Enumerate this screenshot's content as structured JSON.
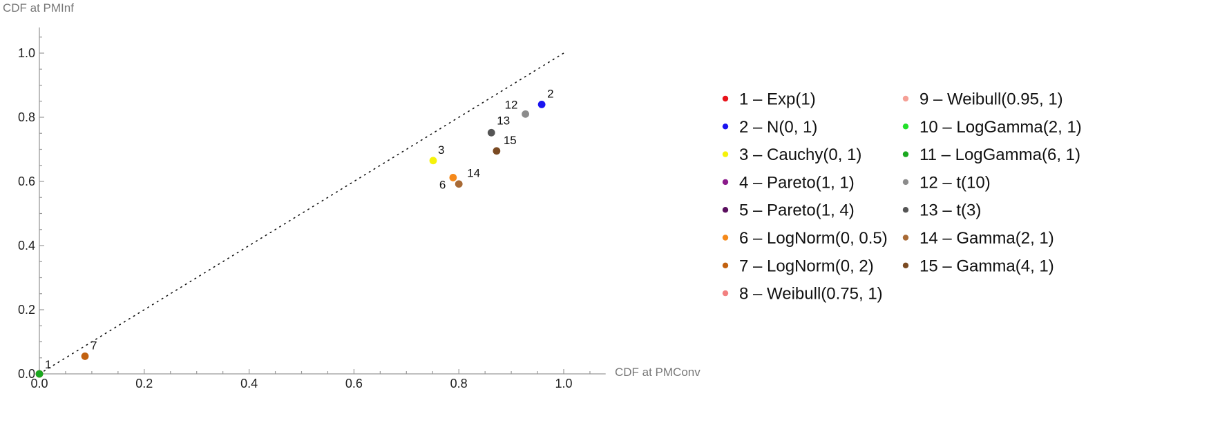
{
  "chart_data": {
    "type": "scatter",
    "xlabel": "CDF at PMConv",
    "ylabel": "CDF at PMInf",
    "xlim": [
      0,
      1.08
    ],
    "ylim": [
      0,
      1.08
    ],
    "x_ticks": [
      0.0,
      0.2,
      0.4,
      0.6,
      0.8,
      1.0
    ],
    "y_ticks": [
      0.0,
      0.2,
      0.4,
      0.6,
      0.8,
      1.0
    ],
    "x_tick_labels": [
      "0.0",
      "0.2",
      "0.4",
      "0.6",
      "0.8",
      "1.0"
    ],
    "y_tick_labels": [
      "0.0",
      "0.2",
      "0.4",
      "0.6",
      "0.8",
      "1.0"
    ],
    "reference_line": {
      "style": "dotted",
      "from": [
        0,
        0
      ],
      "to": [
        1,
        1
      ]
    },
    "grid": false,
    "legend_position": "right",
    "series": [
      {
        "label": "1",
        "name": "1 – Exp(1)",
        "color": "#e8131a",
        "x": 0.0,
        "y": 0.0
      },
      {
        "label": "2",
        "name": "2 – N(0, 1)",
        "color": "#1a14f0",
        "x": 0.958,
        "y": 0.84
      },
      {
        "label": "3",
        "name": "3 – Cauchy(0, 1)",
        "color": "#f5f20a",
        "x": 0.751,
        "y": 0.665
      },
      {
        "label": "4",
        "name": "4 – Pareto(1, 1)",
        "color": "#8b1a8b",
        "x": null,
        "y": null
      },
      {
        "label": "5",
        "name": "5 – Pareto(1, 4)",
        "color": "#5a0f5e",
        "x": null,
        "y": null
      },
      {
        "label": "6",
        "name": "6 – LogNorm(0, 0.5)",
        "color": "#f5891a",
        "x": 0.789,
        "y": 0.612
      },
      {
        "label": "7",
        "name": "7 – LogNorm(0, 2)",
        "color": "#c2610f",
        "x": 0.087,
        "y": 0.055
      },
      {
        "label": "8",
        "name": "8 – Weibull(0.75, 1)",
        "color": "#f28080",
        "x": null,
        "y": null
      },
      {
        "label": "9",
        "name": "9 – Weibull(0.95, 1)",
        "color": "#f5a096",
        "x": null,
        "y": null
      },
      {
        "label": "10",
        "name": "10 – LogGamma(2, 1)",
        "color": "#22e02a",
        "x": null,
        "y": null
      },
      {
        "label": "11",
        "name": "11 – LogGamma(6, 1)",
        "color": "#1aa81f",
        "x": 0.0,
        "y": 0.0
      },
      {
        "label": "12",
        "name": "12 – t(10)",
        "color": "#8c8c8c",
        "x": 0.927,
        "y": 0.81
      },
      {
        "label": "13",
        "name": "13 – t(3)",
        "color": "#555555",
        "x": 0.862,
        "y": 0.752
      },
      {
        "label": "14",
        "name": "14 – Gamma(2, 1)",
        "color": "#a86a35",
        "x": 0.8,
        "y": 0.592
      },
      {
        "label": "15",
        "name": "15 – Gamma(4, 1)",
        "color": "#7a4a22",
        "x": 0.872,
        "y": 0.695
      }
    ]
  }
}
